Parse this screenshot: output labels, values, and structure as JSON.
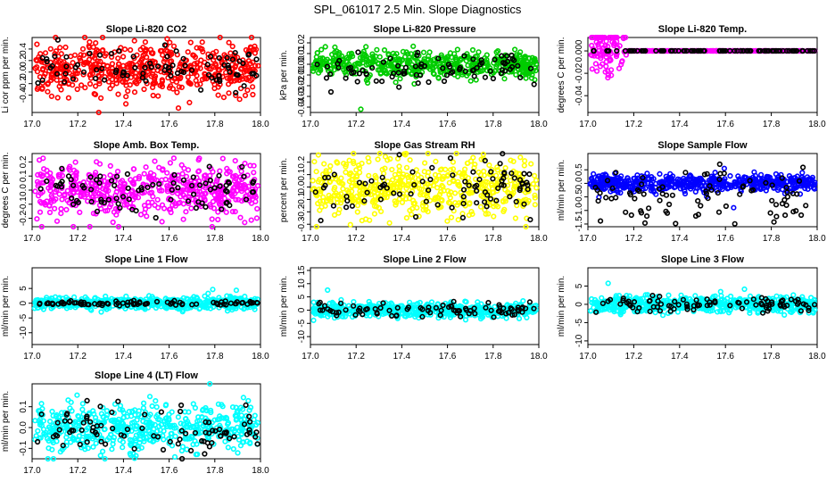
{
  "figure_title": "SPL_061017  2.5 Min. Slope Diagnostics",
  "chart_data": [
    {
      "type": "scatter",
      "title": "Slope Li-820 CO2",
      "ylabel": "Li cor ppm per min.",
      "color": "#ff0000",
      "xlim": [
        17.0,
        18.0
      ],
      "ylim": [
        -0.7,
        0.6
      ],
      "xticks": [
        17.0,
        17.2,
        17.4,
        17.6,
        17.8,
        18.0
      ],
      "xtick_labels": [
        "17.0",
        "17.2",
        "17.4",
        "17.6",
        "17.8",
        "18.0"
      ],
      "yticks": [
        -0.4,
        -0.2,
        0.0,
        0.2,
        0.4
      ],
      "ytick_labels": [
        "-0.4",
        "-0.2",
        "0.0",
        "0.2",
        "0.4"
      ],
      "main": {
        "n": 520,
        "center": 0.05,
        "spread": 0.22
      },
      "flagged": {
        "n": 85,
        "center": 0.05,
        "spread": 0.18
      }
    },
    {
      "type": "scatter",
      "title": "Slope Li-820 Pressure",
      "ylabel": "kPa per min.",
      "color": "#00cc00",
      "xlim": [
        17.0,
        18.0
      ],
      "ylim": [
        -0.045,
        0.025
      ],
      "xticks": [
        17.0,
        17.2,
        17.4,
        17.6,
        17.8,
        18.0
      ],
      "xtick_labels": [
        "17.0",
        "17.2",
        "17.4",
        "17.6",
        "17.8",
        "18.0"
      ],
      "yticks": [
        -0.04,
        -0.03,
        -0.02,
        -0.01,
        0.0,
        0.01,
        0.02
      ],
      "ytick_labels": [
        "-0.04",
        "-0.03",
        "-0.02",
        "-0.01",
        "0.00",
        "0.01",
        "0.02"
      ],
      "main": {
        "n": 520,
        "center": 0.0,
        "spread": 0.006
      },
      "flagged": {
        "n": 85,
        "center": -0.004,
        "spread": 0.009
      }
    },
    {
      "type": "scatter",
      "title": "Slope Li-820 Temp.",
      "ylabel": "degrees C per min.",
      "color": "#ff00ff",
      "xlim": [
        17.0,
        18.0
      ],
      "ylim": [
        -0.055,
        0.012
      ],
      "xticks": [
        17.0,
        17.2,
        17.4,
        17.6,
        17.8,
        18.0
      ],
      "xtick_labels": [
        "17.0",
        "17.2",
        "17.4",
        "17.6",
        "17.8",
        "18.0"
      ],
      "yticks": [
        -0.04,
        -0.02,
        0.0
      ],
      "ytick_labels": [
        "-0.04",
        "-0.02",
        "0.000"
      ],
      "main": {
        "n": 520,
        "center": 0.0,
        "spread": 0.0
      },
      "flagged": {
        "n": 85,
        "center": 0.0,
        "spread": 0.0
      },
      "early_points": {
        "x_end": 17.17,
        "n": 90,
        "spread": 0.012
      }
    },
    {
      "type": "scatter",
      "title": "Slope Amb. Box Temp.",
      "ylabel": "degrees C per min.",
      "color": "#ff00ff",
      "xlim": [
        17.0,
        18.0
      ],
      "ylim": [
        -0.26,
        0.26
      ],
      "xticks": [
        17.0,
        17.2,
        17.4,
        17.6,
        17.8,
        18.0
      ],
      "xtick_labels": [
        "17.0",
        "17.2",
        "17.4",
        "17.6",
        "17.8",
        "18.0"
      ],
      "yticks": [
        -0.2,
        -0.1,
        0.0,
        0.1,
        0.2
      ],
      "ytick_labels": [
        "-0.2",
        "-0.1",
        "0.0",
        "0.1",
        "0.2"
      ],
      "main": {
        "n": 520,
        "center": 0.0,
        "spread": 0.09
      },
      "flagged": {
        "n": 85,
        "center": 0.0,
        "spread": 0.08
      }
    },
    {
      "type": "scatter",
      "title": "Slope Gas Stream RH",
      "ylabel": "percent per min.",
      "color": "#ffff00",
      "xlim": [
        17.0,
        18.0
      ],
      "ylim": [
        -0.32,
        0.27
      ],
      "xticks": [
        17.0,
        17.2,
        17.4,
        17.6,
        17.8,
        18.0
      ],
      "xtick_labels": [
        "17.0",
        "17.2",
        "17.4",
        "17.6",
        "17.8",
        "18.0"
      ],
      "yticks": [
        -0.3,
        -0.2,
        -0.1,
        0.0,
        0.1,
        0.2
      ],
      "ytick_labels": [
        "-0.3",
        "-0.2",
        "-0.1",
        "0.0",
        "0.1",
        "0.2"
      ],
      "main": {
        "n": 520,
        "center": 0.0,
        "spread": 0.11
      },
      "flagged": {
        "n": 85,
        "center": 0.0,
        "spread": 0.11
      }
    },
    {
      "type": "scatter",
      "title": "Slope Sample Flow",
      "ylabel": "ml/min per min.",
      "color": "#0000ff",
      "xlim": [
        17.0,
        18.0
      ],
      "ylim": [
        -1.6,
        1.1
      ],
      "xticks": [
        17.0,
        17.2,
        17.4,
        17.6,
        17.8,
        18.0
      ],
      "xtick_labels": [
        "17.0",
        "17.2",
        "17.4",
        "17.6",
        "17.8",
        "18.0"
      ],
      "yticks": [
        -1.5,
        -1.0,
        -0.5,
        0.0,
        0.5
      ],
      "ytick_labels": [
        "-1.5",
        "-1.0",
        "-0.5",
        "0.0",
        "0.5"
      ],
      "main": {
        "n": 520,
        "center": 0.0,
        "spread": 0.15
      },
      "flagged": {
        "n": 85,
        "center": -0.5,
        "spread": 0.5
      }
    },
    {
      "type": "scatter",
      "title": "Slope Line 1 Flow",
      "ylabel": "ml/min per min.",
      "color": "#00ffff",
      "xlim": [
        17.0,
        18.0
      ],
      "ylim": [
        -14,
        12
      ],
      "xticks": [
        17.0,
        17.2,
        17.4,
        17.6,
        17.8,
        18.0
      ],
      "xtick_labels": [
        "17.0",
        "17.2",
        "17.4",
        "17.6",
        "17.8",
        "18.0"
      ],
      "yticks": [
        -10,
        -5,
        0,
        5
      ],
      "ytick_labels": [
        "-10",
        "-5",
        "0",
        "5"
      ],
      "main": {
        "n": 520,
        "center": 0.0,
        "spread": 1.0
      },
      "flagged": {
        "n": 85,
        "center": 0.0,
        "spread": 0.4
      }
    },
    {
      "type": "scatter",
      "title": "Slope Line 2 Flow",
      "ylabel": "ml/min per min.",
      "color": "#00ffff",
      "xlim": [
        17.0,
        18.0
      ],
      "ylim": [
        -13,
        16
      ],
      "xticks": [
        17.0,
        17.2,
        17.4,
        17.6,
        17.8,
        18.0
      ],
      "xtick_labels": [
        "17.0",
        "17.2",
        "17.4",
        "17.6",
        "17.8",
        "18.0"
      ],
      "yticks": [
        -10,
        -5,
        0,
        5,
        10,
        15
      ],
      "ytick_labels": [
        "-10",
        "-5",
        "0",
        "5",
        "10",
        "15"
      ],
      "main": {
        "n": 520,
        "center": 0.0,
        "spread": 1.3
      },
      "flagged": {
        "n": 85,
        "center": 0.0,
        "spread": 1.5
      }
    },
    {
      "type": "scatter",
      "title": "Slope Line 3 Flow",
      "ylabel": "ml/min per min.",
      "color": "#00ffff",
      "xlim": [
        17.0,
        18.0
      ],
      "ylim": [
        -11,
        10
      ],
      "xticks": [
        17.0,
        17.2,
        17.4,
        17.6,
        17.8,
        18.0
      ],
      "xtick_labels": [
        "17.0",
        "17.2",
        "17.4",
        "17.6",
        "17.8",
        "18.0"
      ],
      "yticks": [
        -10,
        -5,
        0,
        5
      ],
      "ytick_labels": [
        "-10",
        "-5",
        "0",
        "5"
      ],
      "main": {
        "n": 520,
        "center": 0.0,
        "spread": 1.1
      },
      "flagged": {
        "n": 85,
        "center": 0.0,
        "spread": 1.0
      }
    },
    {
      "type": "scatter",
      "title": "Slope Line 4 (LT) Flow",
      "ylabel": "ml/min per min.",
      "color": "#00ffff",
      "xlim": [
        17.0,
        18.0
      ],
      "ylim": [
        -0.15,
        0.21
      ],
      "xticks": [
        17.0,
        17.2,
        17.4,
        17.6,
        17.8,
        18.0
      ],
      "xtick_labels": [
        "17.0",
        "17.2",
        "17.4",
        "17.6",
        "17.8",
        "18.0"
      ],
      "yticks": [
        -0.1,
        0.0,
        0.1
      ],
      "ytick_labels": [
        "-0.1",
        "0.0",
        "0.1"
      ],
      "main": {
        "n": 520,
        "center": 0.0,
        "spread": 0.055
      },
      "flagged": {
        "n": 85,
        "center": 0.0,
        "spread": 0.055
      }
    }
  ]
}
